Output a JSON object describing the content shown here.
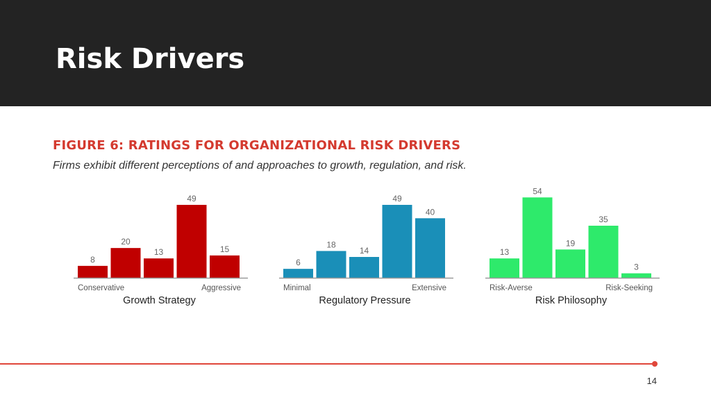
{
  "slide": {
    "title": "Risk Drivers",
    "page_number": "14"
  },
  "figure": {
    "title": "FIGURE 6: RATINGS FOR ORGANIZATIONAL RISK DRIVERS",
    "subtitle": "Firms exhibit different perceptions of and approaches to growth, regulation, and risk."
  },
  "colors": {
    "header_bg": "#232323",
    "accent": "#e0463a",
    "growth": "#c00000",
    "regulatory": "#1a8fb8",
    "risk": "#2eea6b"
  },
  "chart_data": [
    {
      "type": "bar",
      "title": "Growth Strategy",
      "values": [
        8,
        20,
        13,
        49,
        15
      ],
      "scale_left": "Conservative",
      "scale_right": "Aggressive",
      "color": "#c00000"
    },
    {
      "type": "bar",
      "title": "Regulatory Pressure",
      "values": [
        6,
        18,
        14,
        49,
        40
      ],
      "scale_left": "Minimal",
      "scale_right": "Extensive",
      "color": "#1a8fb8"
    },
    {
      "type": "bar",
      "title": "Risk Philosophy",
      "values": [
        13,
        54,
        19,
        35,
        3
      ],
      "scale_left": "Risk-Averse",
      "scale_right": "Risk-Seeking",
      "color": "#2eea6b"
    }
  ]
}
